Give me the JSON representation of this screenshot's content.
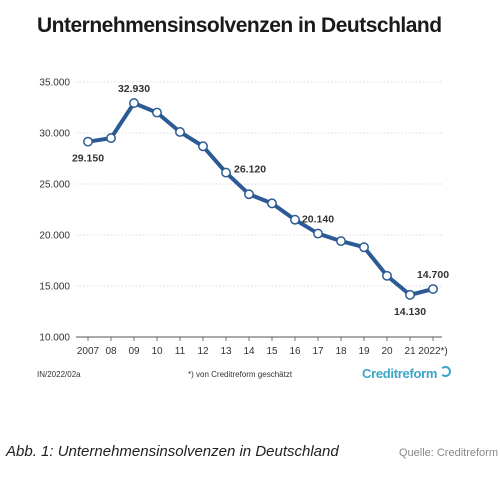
{
  "title": "Unternehmensinsolvenzen in Deutschland",
  "footnote_left": "IN/2022/02a",
  "footnote_mid": "*) von Creditreform geschätzt",
  "logo": "Creditreform",
  "caption": "Abb. 1: Unternehmensinsolvenzen in Deutschland",
  "source": "Quelle: Creditreform",
  "colors": {
    "line": "#2b5a94",
    "grid": "#cfcfcf",
    "logo": "#3aa6c6"
  },
  "chart_data": {
    "type": "line",
    "title": "Unternehmensinsolvenzen in Deutschland",
    "xlabel": "",
    "ylabel": "",
    "ylim": [
      10000,
      35000
    ],
    "yticks": [
      10000,
      15000,
      20000,
      25000,
      30000,
      35000
    ],
    "ytick_labels": [
      "10.000",
      "15.000",
      "20.000",
      "25.000",
      "30.000",
      "35.000"
    ],
    "grid": true,
    "categories": [
      "2007",
      "08",
      "09",
      "10",
      "11",
      "12",
      "13",
      "14",
      "15",
      "16",
      "17",
      "18",
      "19",
      "20",
      "21",
      "2022*)"
    ],
    "values": [
      29150,
      29500,
      32930,
      32000,
      30100,
      28700,
      26120,
      24000,
      23100,
      21500,
      20140,
      19400,
      18800,
      16000,
      14130,
      14700
    ],
    "data_labels": [
      {
        "index": 0,
        "text": "29.150",
        "pos": "below"
      },
      {
        "index": 2,
        "text": "32.930",
        "pos": "above"
      },
      {
        "index": 6,
        "text": "26.120",
        "pos": "right"
      },
      {
        "index": 10,
        "text": "20.140",
        "pos": "above"
      },
      {
        "index": 14,
        "text": "14.130",
        "pos": "below"
      },
      {
        "index": 15,
        "text": "14.700",
        "pos": "above"
      }
    ]
  }
}
